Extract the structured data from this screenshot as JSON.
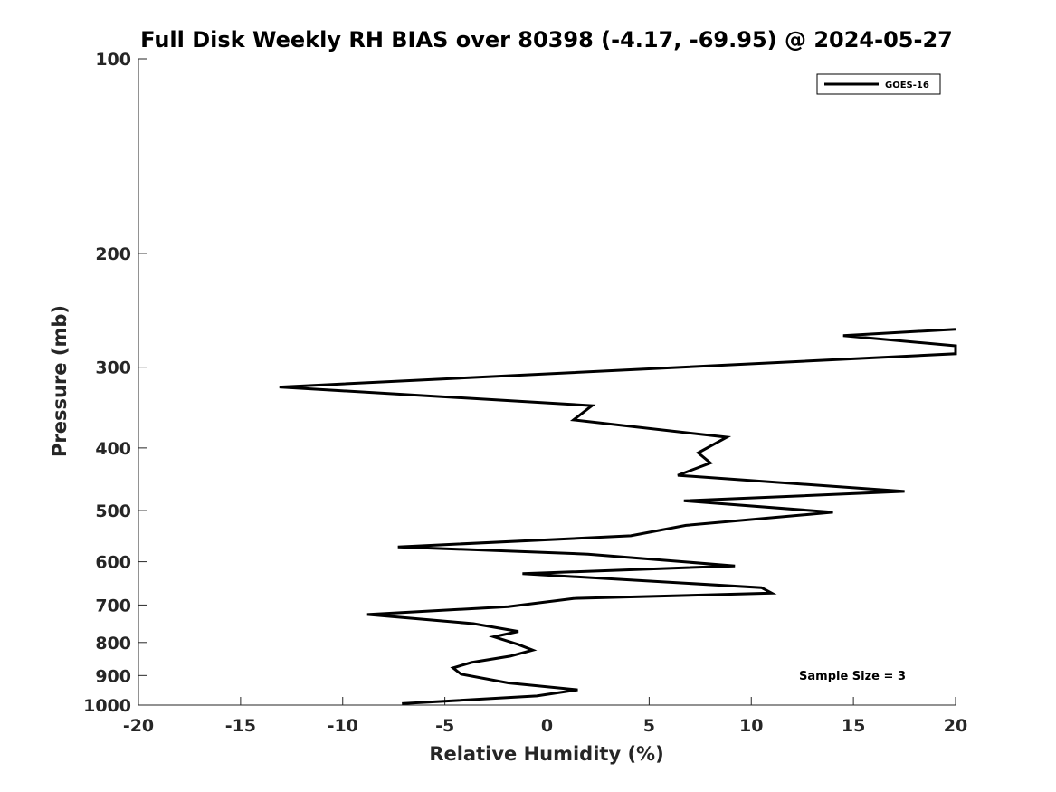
{
  "chart_data": {
    "type": "line",
    "title": "Full Disk Weekly RH BIAS over 80398 (-4.17, -69.95) @ 2024-05-27",
    "xlabel": "Relative Humidity (%)",
    "ylabel": "Pressure (mb)",
    "xlim": [
      -20,
      20
    ],
    "ylim": [
      1000,
      100
    ],
    "y_scale": "log",
    "x_ticks": [
      -20,
      -15,
      -10,
      -5,
      0,
      5,
      10,
      15,
      20
    ],
    "y_ticks": [
      100,
      200,
      300,
      400,
      500,
      600,
      700,
      800,
      900,
      1000
    ],
    "grid": false,
    "legend_position": "top-right",
    "annotation": "Sample Size = 3",
    "series": [
      {
        "name": "GOES-16",
        "color": "#000000",
        "points": [
          [
            20,
            262
          ],
          [
            14.5,
            268
          ],
          [
            20,
            278
          ],
          [
            20,
            286
          ],
          [
            -13.1,
            322
          ],
          [
            2.2,
            344
          ],
          [
            1.3,
            362
          ],
          [
            8.8,
            385
          ],
          [
            7.4,
            407
          ],
          [
            8.0,
            422
          ],
          [
            6.4,
            441
          ],
          [
            17.5,
            467
          ],
          [
            6.7,
            483
          ],
          [
            14.0,
            503
          ],
          [
            6.8,
            527
          ],
          [
            4.1,
            547
          ],
          [
            -7.3,
            569
          ],
          [
            2.0,
            584
          ],
          [
            9.2,
            609
          ],
          [
            -1.2,
            626
          ],
          [
            10.5,
            658
          ],
          [
            11.0,
            671
          ],
          [
            1.3,
            684
          ],
          [
            -1.9,
            704
          ],
          [
            -8.8,
            724
          ],
          [
            -3.6,
            748
          ],
          [
            -1.4,
            769
          ],
          [
            -2.6,
            784
          ],
          [
            -1.4,
            806
          ],
          [
            -0.7,
            822
          ],
          [
            -1.8,
            840
          ],
          [
            -3.7,
            859
          ],
          [
            -4.6,
            876
          ],
          [
            -4.2,
            896
          ],
          [
            -1.9,
            924
          ],
          [
            1.5,
            947
          ],
          [
            -0.5,
            968
          ],
          [
            -7.1,
            995
          ]
        ]
      }
    ]
  }
}
